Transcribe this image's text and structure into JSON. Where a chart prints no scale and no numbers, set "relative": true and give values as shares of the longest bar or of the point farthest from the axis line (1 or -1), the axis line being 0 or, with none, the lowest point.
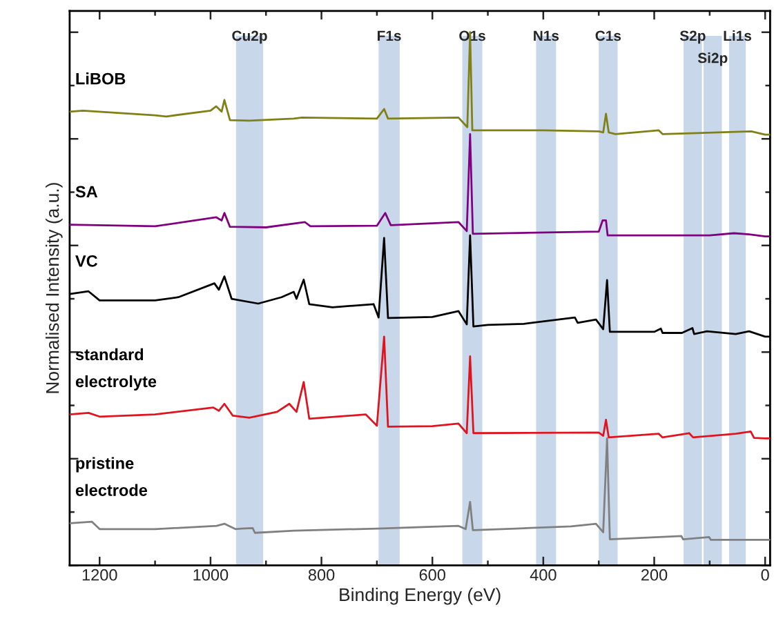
{
  "chart_data": {
    "type": "line",
    "xlabel": "Binding Energy (eV)",
    "ylabel": "Normalised Intensity (a.u.)",
    "relative": true,
    "xlim": [
      1254,
      -9
    ],
    "xticks": [
      1200,
      1000,
      800,
      600,
      400,
      200,
      0
    ],
    "tick_labels": "x",
    "grid": false,
    "legend": false,
    "series": [
      {
        "name": "LiBOB",
        "color": "#808015",
        "x": [
          1254,
          1230,
          1100,
          1080,
          1000,
          990,
          980,
          975,
          965,
          930,
          850,
          835,
          700,
          687,
          680,
          553,
          537,
          532,
          528,
          400,
          300,
          292,
          287,
          282,
          270,
          192,
          185,
          25,
          0,
          -9
        ],
        "values": [
          0.851,
          0.853,
          0.844,
          0.842,
          0.853,
          0.861,
          0.851,
          0.873,
          0.835,
          0.834,
          0.838,
          0.84,
          0.838,
          0.856,
          0.838,
          0.84,
          0.822,
          1.0,
          0.816,
          0.816,
          0.814,
          0.812,
          0.847,
          0.812,
          0.809,
          0.816,
          0.809,
          0.814,
          0.808,
          0.808
        ]
      },
      {
        "name": "SA",
        "color": "#800080",
        "x": [
          1254,
          1100,
          990,
          980,
          975,
          965,
          900,
          830,
          820,
          700,
          685,
          675,
          553,
          538,
          532,
          527,
          300,
          293,
          287,
          284,
          100,
          56,
          29,
          0,
          -9
        ],
        "values": [
          0.639,
          0.636,
          0.653,
          0.647,
          0.661,
          0.635,
          0.634,
          0.644,
          0.636,
          0.637,
          0.661,
          0.638,
          0.644,
          0.627,
          0.809,
          0.622,
          0.626,
          0.647,
          0.647,
          0.619,
          0.619,
          0.623,
          0.621,
          0.617,
          0.617
        ]
      },
      {
        "name": "VC",
        "color": "#000000",
        "x": [
          1254,
          1220,
          1200,
          1100,
          1058,
          993,
          985,
          975,
          962,
          914,
          872,
          850,
          845,
          832,
          822,
          780,
          706,
          697,
          687,
          680,
          600,
          553,
          538,
          532,
          526,
          500,
          435,
          343,
          338,
          305,
          292,
          285,
          280,
          200,
          188,
          185,
          150,
          131,
          128,
          105,
          53,
          29,
          0,
          -9
        ],
        "values": [
          0.509,
          0.514,
          0.497,
          0.497,
          0.503,
          0.529,
          0.517,
          0.542,
          0.5,
          0.491,
          0.503,
          0.513,
          0.5,
          0.536,
          0.49,
          0.484,
          0.49,
          0.465,
          0.614,
          0.464,
          0.466,
          0.477,
          0.452,
          0.619,
          0.448,
          0.451,
          0.453,
          0.465,
          0.455,
          0.461,
          0.443,
          0.535,
          0.438,
          0.438,
          0.444,
          0.436,
          0.436,
          0.445,
          0.434,
          0.439,
          0.434,
          0.439,
          0.429,
          0.429
        ]
      },
      {
        "name": "standard\nelectrolyte",
        "color": "#e0141e",
        "x": [
          1254,
          1220,
          1200,
          1100,
          995,
          985,
          975,
          960,
          930,
          880,
          858,
          845,
          832,
          822,
          720,
          700,
          687,
          680,
          600,
          553,
          538,
          532,
          526,
          300,
          292,
          287,
          282,
          192,
          185,
          137,
          130,
          53,
          26,
          20,
          0,
          -9
        ],
        "values": [
          0.283,
          0.286,
          0.279,
          0.283,
          0.296,
          0.29,
          0.303,
          0.281,
          0.277,
          0.288,
          0.303,
          0.288,
          0.344,
          0.275,
          0.283,
          0.262,
          0.429,
          0.26,
          0.261,
          0.266,
          0.248,
          0.392,
          0.248,
          0.249,
          0.243,
          0.273,
          0.24,
          0.247,
          0.24,
          0.248,
          0.24,
          0.247,
          0.251,
          0.239,
          0.238,
          0.238
        ]
      },
      {
        "name": "pristine\nelectrode",
        "color": "#808080",
        "x": [
          1254,
          1214,
          1200,
          1100,
          989,
          975,
          955,
          945,
          924,
          920,
          850,
          700,
          553,
          540,
          532,
          527,
          450,
          350,
          305,
          292,
          285,
          280,
          151,
          148,
          101,
          98,
          0,
          -9
        ],
        "values": [
          0.079,
          0.082,
          0.068,
          0.068,
          0.074,
          0.078,
          0.068,
          0.069,
          0.07,
          0.061,
          0.065,
          0.069,
          0.074,
          0.068,
          0.119,
          0.066,
          0.069,
          0.073,
          0.078,
          0.062,
          0.238,
          0.049,
          0.055,
          0.049,
          0.053,
          0.048,
          0.048,
          0.048
        ]
      }
    ],
    "bands": [
      {
        "axis": "x",
        "from": 954,
        "to": 905,
        "label": "Cu2p",
        "color": "#c9d7ea"
      },
      {
        "axis": "x",
        "from": 697,
        "to": 659,
        "label": "F1s",
        "color": "#c9d7ea"
      },
      {
        "axis": "x",
        "from": 546,
        "to": 510,
        "label": "O1s",
        "color": "#c9d7ea"
      },
      {
        "axis": "x",
        "from": 413,
        "to": 377,
        "label": "N1s",
        "color": "#c9d7ea"
      },
      {
        "axis": "x",
        "from": 300,
        "to": 266,
        "label": "C1s",
        "color": "#c9d7ea"
      },
      {
        "axis": "x",
        "from": 147,
        "to": 114,
        "label": "S2p",
        "color": "#c9d7ea"
      },
      {
        "axis": "x",
        "from": 111,
        "to": 78,
        "label": "Si2p",
        "color": "#c9d7ea"
      },
      {
        "axis": "x",
        "from": 65,
        "to": 35,
        "label": "Li1s",
        "color": "#c9d7ea"
      }
    ]
  }
}
